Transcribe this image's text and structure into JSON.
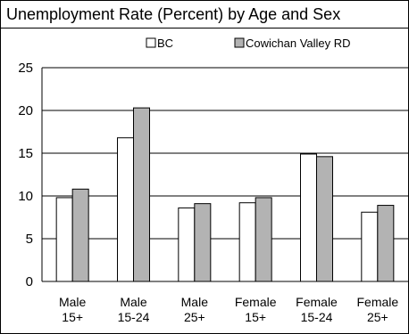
{
  "chart_data": {
    "type": "bar",
    "title": "Unemployment Rate (Percent) by Age and Sex",
    "categories": [
      [
        "Male",
        "15+"
      ],
      [
        "Male",
        "15-24"
      ],
      [
        "Male",
        "25+"
      ],
      [
        "Female",
        "15+"
      ],
      [
        "Female",
        "15-24"
      ],
      [
        "Female",
        "25+"
      ]
    ],
    "series": [
      {
        "name": "BC",
        "color": "#ffffff",
        "values": [
          9.8,
          16.8,
          8.6,
          9.2,
          14.9,
          8.1
        ]
      },
      {
        "name": "Cowichan Valley RD",
        "color": "#b3b3b3",
        "values": [
          10.8,
          20.3,
          9.1,
          9.8,
          14.6,
          8.9
        ]
      }
    ],
    "ylim": [
      0,
      25
    ],
    "yticks": [
      0,
      5,
      10,
      15,
      20,
      25
    ],
    "xlabel": "",
    "ylabel": "",
    "grid": true,
    "legend": "top"
  }
}
